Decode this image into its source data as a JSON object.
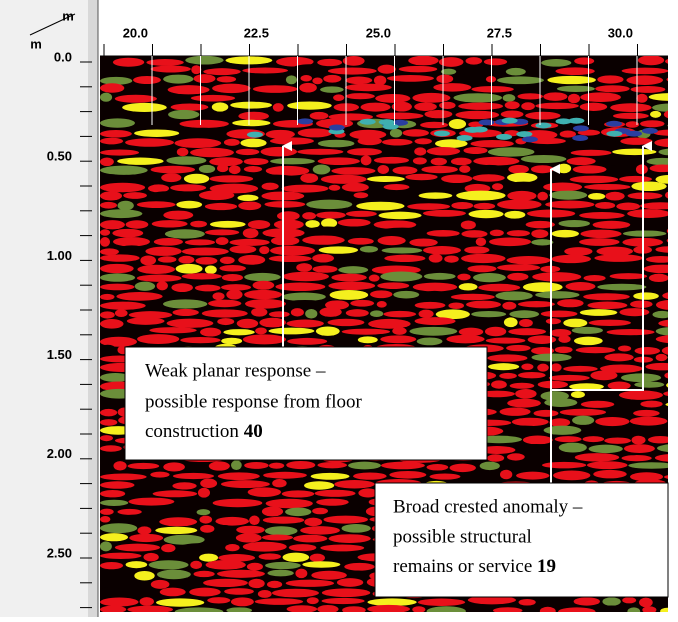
{
  "axes": {
    "corner_top": "m",
    "corner_left": "m",
    "x_labels": [
      "20.0",
      "22.5",
      "25.0",
      "27.5",
      "30.0"
    ],
    "y_labels": [
      "0.0",
      "0.50",
      "1.00",
      "1.50",
      "2.00",
      "2.50"
    ]
  },
  "annotations": [
    {
      "lines": [
        "Weak planar response –",
        "possible response from floor",
        "construction"
      ],
      "number": "40"
    },
    {
      "lines": [
        "Broad crested anomaly –",
        "possible structural",
        "remains or service"
      ],
      "number": "19"
    }
  ]
}
